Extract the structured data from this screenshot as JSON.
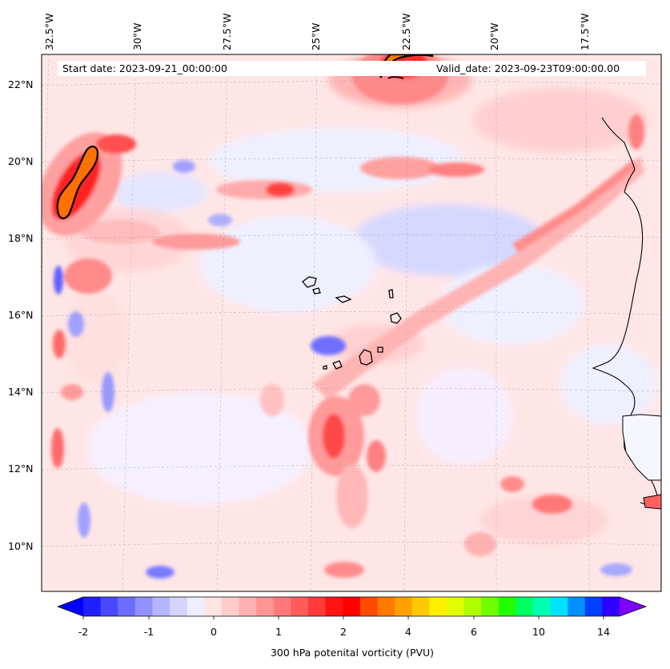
{
  "map": {
    "start_date": "Start date: 2023-09-21_00:00:00",
    "valid_date": "Valid_date: 2023-09-23T09:00:00.00",
    "lon_labels": [
      "32.5°W",
      "30°W",
      "27.5°W",
      "25°W",
      "22.5°W",
      "20°W",
      "17.5°W"
    ],
    "lat_labels": [
      "22°N",
      "20°N",
      "18°N",
      "16°N",
      "14°N",
      "12°N",
      "10°N"
    ]
  },
  "colorbar": {
    "label": "300 hPa potenital vorticity (PVU)",
    "ticks": [
      "-2",
      "-1",
      "0",
      "1",
      "2",
      "4",
      "6",
      "10",
      "14"
    ],
    "colors": [
      "#0000ff",
      "#2020ff",
      "#4848ff",
      "#6c6cff",
      "#9090ff",
      "#b4b4ff",
      "#d4d4ff",
      "#eeeeff",
      "#ffe4e4",
      "#ffcccc",
      "#ffb0b0",
      "#ff9494",
      "#ff7878",
      "#ff5c5c",
      "#ff3a3a",
      "#ff1414",
      "#ff0000",
      "#ff4a00",
      "#ff7800",
      "#ffa000",
      "#ffc800",
      "#fff000",
      "#e0ff00",
      "#b0ff00",
      "#70ff00",
      "#20ff00",
      "#00ff60",
      "#00ffb0",
      "#00e0ff",
      "#0090ff",
      "#0040ff",
      "#3000ff",
      "#8000ff"
    ]
  }
}
